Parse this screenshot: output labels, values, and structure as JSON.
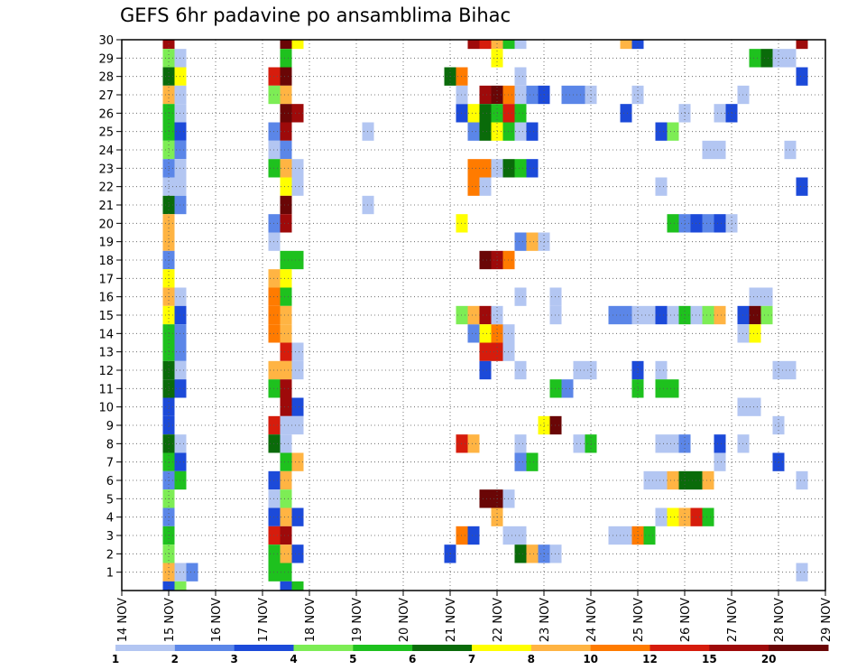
{
  "chart_data": {
    "type": "heatmap",
    "title": "GEFS 6hr padavine po ansamblima Bihac",
    "xlabel": "",
    "ylabel": "",
    "x_ticks": [
      "14 NOV",
      "15 NOV",
      "16 NOV",
      "17 NOV",
      "18 NOV",
      "19 NOV",
      "20 NOV",
      "21 NOV",
      "22 NOV",
      "23 NOV",
      "24 NOV",
      "25 NOV",
      "26 NOV",
      "27 NOV",
      "28 NOV",
      "29 NOV"
    ],
    "y_ticks": [
      1,
      2,
      3,
      4,
      5,
      6,
      7,
      8,
      9,
      10,
      11,
      12,
      13,
      14,
      15,
      16,
      17,
      18,
      19,
      20,
      21,
      22,
      23,
      24,
      25,
      26,
      27,
      28,
      29,
      30
    ],
    "xlim": [
      0,
      60
    ],
    "ylim": [
      0,
      30
    ],
    "grid": true,
    "colorbar": {
      "labels": [
        "1",
        "2",
        "3",
        "4",
        "5",
        "6",
        "7",
        "8",
        "10",
        "12",
        "15",
        "20"
      ],
      "colors": [
        "#b3c6f2",
        "#5b86e8",
        "#1c4ad9",
        "#7ded55",
        "#1ec11e",
        "#0a6b0a",
        "#ffff00",
        "#ffb443",
        "#ff7b00",
        "#d61c0c",
        "#9e0a0a",
        "#6a0606"
      ]
    },
    "cells_note_units": "x = 6-hour step index from 14 NOV 00z; y = ensemble member; level = index into colorbar.colors",
    "cells": [
      [
        4,
        30,
        10
      ],
      [
        4,
        29,
        3
      ],
      [
        4,
        28,
        5
      ],
      [
        4,
        27,
        7
      ],
      [
        4,
        26,
        4
      ],
      [
        4,
        25,
        4
      ],
      [
        4,
        24,
        3
      ],
      [
        4,
        23,
        1
      ],
      [
        4,
        22,
        0
      ],
      [
        4,
        21,
        5
      ],
      [
        4,
        20,
        7
      ],
      [
        4,
        19,
        7
      ],
      [
        4,
        18,
        1
      ],
      [
        4,
        17,
        6
      ],
      [
        4,
        16,
        7
      ],
      [
        4,
        15,
        6
      ],
      [
        4,
        14,
        4
      ],
      [
        4,
        13,
        4
      ],
      [
        4,
        12,
        5
      ],
      [
        4,
        11,
        5
      ],
      [
        4,
        10,
        2
      ],
      [
        4,
        9,
        2
      ],
      [
        4,
        8,
        5
      ],
      [
        4,
        7,
        4
      ],
      [
        4,
        6,
        1
      ],
      [
        4,
        5,
        3
      ],
      [
        4,
        4,
        1
      ],
      [
        4,
        3,
        4
      ],
      [
        4,
        2,
        3
      ],
      [
        4,
        1,
        7
      ],
      [
        4,
        0,
        2
      ],
      [
        5,
        29,
        0
      ],
      [
        5,
        28,
        6
      ],
      [
        5,
        27,
        0
      ],
      [
        5,
        26,
        0
      ],
      [
        5,
        25,
        2
      ],
      [
        5,
        24,
        1
      ],
      [
        5,
        23,
        0
      ],
      [
        5,
        22,
        0
      ],
      [
        5,
        21,
        1
      ],
      [
        5,
        16,
        0
      ],
      [
        5,
        15,
        2
      ],
      [
        5,
        14,
        1
      ],
      [
        5,
        13,
        1
      ],
      [
        5,
        12,
        0
      ],
      [
        5,
        11,
        2
      ],
      [
        5,
        8,
        0
      ],
      [
        5,
        7,
        2
      ],
      [
        5,
        6,
        4
      ],
      [
        5,
        1,
        0
      ],
      [
        5,
        0,
        3
      ],
      [
        6,
        1,
        1
      ],
      [
        13,
        28,
        9
      ],
      [
        13,
        27,
        3
      ],
      [
        13,
        25,
        1
      ],
      [
        13,
        24,
        0
      ],
      [
        13,
        23,
        4
      ],
      [
        13,
        20,
        1
      ],
      [
        13,
        19,
        0
      ],
      [
        13,
        17,
        7
      ],
      [
        13,
        16,
        8
      ],
      [
        13,
        15,
        8
      ],
      [
        13,
        14,
        8
      ],
      [
        13,
        12,
        7
      ],
      [
        13,
        11,
        4
      ],
      [
        13,
        9,
        9
      ],
      [
        13,
        8,
        5
      ],
      [
        13,
        6,
        2
      ],
      [
        13,
        5,
        0
      ],
      [
        13,
        4,
        2
      ],
      [
        13,
        3,
        9
      ],
      [
        13,
        2,
        4
      ],
      [
        13,
        1,
        4
      ],
      [
        14,
        30,
        11
      ],
      [
        14,
        29,
        4
      ],
      [
        14,
        28,
        11
      ],
      [
        14,
        27,
        7
      ],
      [
        14,
        26,
        11
      ],
      [
        14,
        25,
        10
      ],
      [
        14,
        24,
        1
      ],
      [
        14,
        23,
        7
      ],
      [
        14,
        22,
        6
      ],
      [
        14,
        21,
        11
      ],
      [
        14,
        20,
        10
      ],
      [
        14,
        18,
        4
      ],
      [
        14,
        17,
        6
      ],
      [
        14,
        16,
        4
      ],
      [
        14,
        15,
        7
      ],
      [
        14,
        14,
        7
      ],
      [
        14,
        13,
        9
      ],
      [
        14,
        12,
        7
      ],
      [
        14,
        11,
        10
      ],
      [
        14,
        10,
        10
      ],
      [
        14,
        9,
        0
      ],
      [
        14,
        8,
        0
      ],
      [
        14,
        7,
        4
      ],
      [
        14,
        6,
        7
      ],
      [
        14,
        5,
        3
      ],
      [
        14,
        4,
        7
      ],
      [
        14,
        3,
        10
      ],
      [
        14,
        2,
        7
      ],
      [
        14,
        1,
        4
      ],
      [
        14,
        0,
        2
      ],
      [
        15,
        30,
        6
      ],
      [
        15,
        26,
        10
      ],
      [
        15,
        23,
        0
      ],
      [
        15,
        22,
        0
      ],
      [
        15,
        18,
        4
      ],
      [
        15,
        13,
        0
      ],
      [
        15,
        12,
        0
      ],
      [
        15,
        10,
        2
      ],
      [
        15,
        9,
        0
      ],
      [
        15,
        7,
        7
      ],
      [
        15,
        4,
        2
      ],
      [
        15,
        2,
        2
      ],
      [
        15,
        0,
        4
      ],
      [
        21,
        21,
        0
      ],
      [
        21,
        25,
        0
      ],
      [
        28,
        28,
        5
      ],
      [
        28,
        2,
        2
      ],
      [
        29,
        28,
        8
      ],
      [
        29,
        3,
        8
      ],
      [
        29,
        8,
        9
      ],
      [
        29,
        15,
        3
      ],
      [
        29,
        20,
        6
      ],
      [
        29,
        26,
        2
      ],
      [
        29,
        27,
        0
      ],
      [
        30,
        30,
        10
      ],
      [
        30,
        26,
        6
      ],
      [
        30,
        25,
        1
      ],
      [
        30,
        23,
        8
      ],
      [
        30,
        22,
        8
      ],
      [
        30,
        14,
        1
      ],
      [
        30,
        15,
        7
      ],
      [
        30,
        8,
        7
      ],
      [
        30,
        3,
        2
      ],
      [
        31,
        30,
        9
      ],
      [
        31,
        27,
        10
      ],
      [
        31,
        26,
        5
      ],
      [
        31,
        25,
        5
      ],
      [
        31,
        23,
        8
      ],
      [
        31,
        22,
        0
      ],
      [
        31,
        18,
        11
      ],
      [
        31,
        15,
        10
      ],
      [
        31,
        14,
        6
      ],
      [
        31,
        13,
        9
      ],
      [
        31,
        12,
        2
      ],
      [
        31,
        5,
        11
      ],
      [
        32,
        30,
        7
      ],
      [
        32,
        29,
        6
      ],
      [
        32,
        27,
        11
      ],
      [
        32,
        26,
        4
      ],
      [
        32,
        25,
        6
      ],
      [
        32,
        23,
        0
      ],
      [
        32,
        18,
        10
      ],
      [
        32,
        14,
        8
      ],
      [
        32,
        13,
        9
      ],
      [
        32,
        5,
        11
      ],
      [
        32,
        4,
        7
      ],
      [
        32,
        15,
        0
      ],
      [
        33,
        30,
        4
      ],
      [
        33,
        27,
        8
      ],
      [
        33,
        26,
        9
      ],
      [
        33,
        25,
        4
      ],
      [
        33,
        23,
        5
      ],
      [
        33,
        18,
        8
      ],
      [
        33,
        14,
        0
      ],
      [
        33,
        13,
        0
      ],
      [
        33,
        5,
        0
      ],
      [
        33,
        3,
        0
      ],
      [
        34,
        30,
        0
      ],
      [
        34,
        28,
        0
      ],
      [
        34,
        27,
        0
      ],
      [
        34,
        26,
        4
      ],
      [
        34,
        25,
        0
      ],
      [
        34,
        23,
        4
      ],
      [
        34,
        19,
        1
      ],
      [
        34,
        16,
        0
      ],
      [
        34,
        12,
        0
      ],
      [
        34,
        7,
        1
      ],
      [
        34,
        3,
        0
      ],
      [
        34,
        2,
        5
      ],
      [
        34,
        8,
        0
      ],
      [
        35,
        27,
        1
      ],
      [
        35,
        25,
        2
      ],
      [
        35,
        23,
        2
      ],
      [
        35,
        19,
        7
      ],
      [
        35,
        7,
        4
      ],
      [
        35,
        2,
        7
      ],
      [
        36,
        27,
        2
      ],
      [
        36,
        19,
        0
      ],
      [
        36,
        9,
        6
      ],
      [
        36,
        2,
        1
      ],
      [
        37,
        9,
        11
      ],
      [
        37,
        2,
        0
      ],
      [
        37,
        16,
        0
      ],
      [
        37,
        15,
        0
      ],
      [
        37,
        11,
        4
      ],
      [
        38,
        27,
        1
      ],
      [
        38,
        11,
        1
      ],
      [
        39,
        27,
        1
      ],
      [
        39,
        12,
        0
      ],
      [
        39,
        8,
        0
      ],
      [
        40,
        27,
        0
      ],
      [
        40,
        12,
        0
      ],
      [
        40,
        8,
        4
      ],
      [
        42,
        15,
        1
      ],
      [
        42,
        3,
        0
      ],
      [
        43,
        30,
        7
      ],
      [
        43,
        26,
        2
      ],
      [
        43,
        15,
        1
      ],
      [
        43,
        3,
        0
      ],
      [
        44,
        30,
        2
      ],
      [
        44,
        27,
        0
      ],
      [
        44,
        15,
        0
      ],
      [
        44,
        12,
        2
      ],
      [
        44,
        11,
        4
      ],
      [
        44,
        3,
        8
      ],
      [
        45,
        6,
        0
      ],
      [
        45,
        15,
        0
      ],
      [
        45,
        3,
        4
      ],
      [
        46,
        25,
        2
      ],
      [
        46,
        22,
        0
      ],
      [
        46,
        15,
        2
      ],
      [
        46,
        12,
        0
      ],
      [
        46,
        11,
        4
      ],
      [
        46,
        8,
        0
      ],
      [
        46,
        6,
        0
      ],
      [
        46,
        4,
        0
      ],
      [
        47,
        25,
        3
      ],
      [
        47,
        20,
        4
      ],
      [
        47,
        15,
        0
      ],
      [
        47,
        11,
        4
      ],
      [
        47,
        8,
        0
      ],
      [
        47,
        6,
        7
      ],
      [
        47,
        4,
        6
      ],
      [
        48,
        26,
        0
      ],
      [
        48,
        20,
        1
      ],
      [
        48,
        15,
        4
      ],
      [
        48,
        8,
        1
      ],
      [
        48,
        6,
        5
      ],
      [
        48,
        4,
        7
      ],
      [
        49,
        20,
        2
      ],
      [
        49,
        15,
        0
      ],
      [
        49,
        6,
        5
      ],
      [
        49,
        4,
        9
      ],
      [
        50,
        24,
        0
      ],
      [
        50,
        20,
        1
      ],
      [
        50,
        15,
        3
      ],
      [
        50,
        6,
        7
      ],
      [
        50,
        4,
        4
      ],
      [
        51,
        26,
        0
      ],
      [
        51,
        24,
        0
      ],
      [
        51,
        20,
        2
      ],
      [
        51,
        15,
        7
      ],
      [
        51,
        8,
        2
      ],
      [
        51,
        7,
        0
      ],
      [
        52,
        26,
        2
      ],
      [
        52,
        20,
        0
      ],
      [
        53,
        27,
        0
      ],
      [
        53,
        15,
        2
      ],
      [
        53,
        14,
        0
      ],
      [
        53,
        10,
        0
      ],
      [
        53,
        8,
        0
      ],
      [
        54,
        29,
        4
      ],
      [
        54,
        16,
        0
      ],
      [
        54,
        15,
        11
      ],
      [
        54,
        14,
        6
      ],
      [
        54,
        10,
        0
      ],
      [
        55,
        29,
        5
      ],
      [
        55,
        16,
        0
      ],
      [
        55,
        15,
        3
      ],
      [
        56,
        29,
        0
      ],
      [
        56,
        12,
        0
      ],
      [
        56,
        9,
        0
      ],
      [
        56,
        7,
        2
      ],
      [
        57,
        29,
        0
      ],
      [
        57,
        24,
        0
      ],
      [
        57,
        12,
        0
      ],
      [
        58,
        30,
        10
      ],
      [
        58,
        28,
        2
      ],
      [
        58,
        22,
        2
      ],
      [
        58,
        6,
        0
      ],
      [
        58,
        1,
        0
      ]
    ]
  }
}
